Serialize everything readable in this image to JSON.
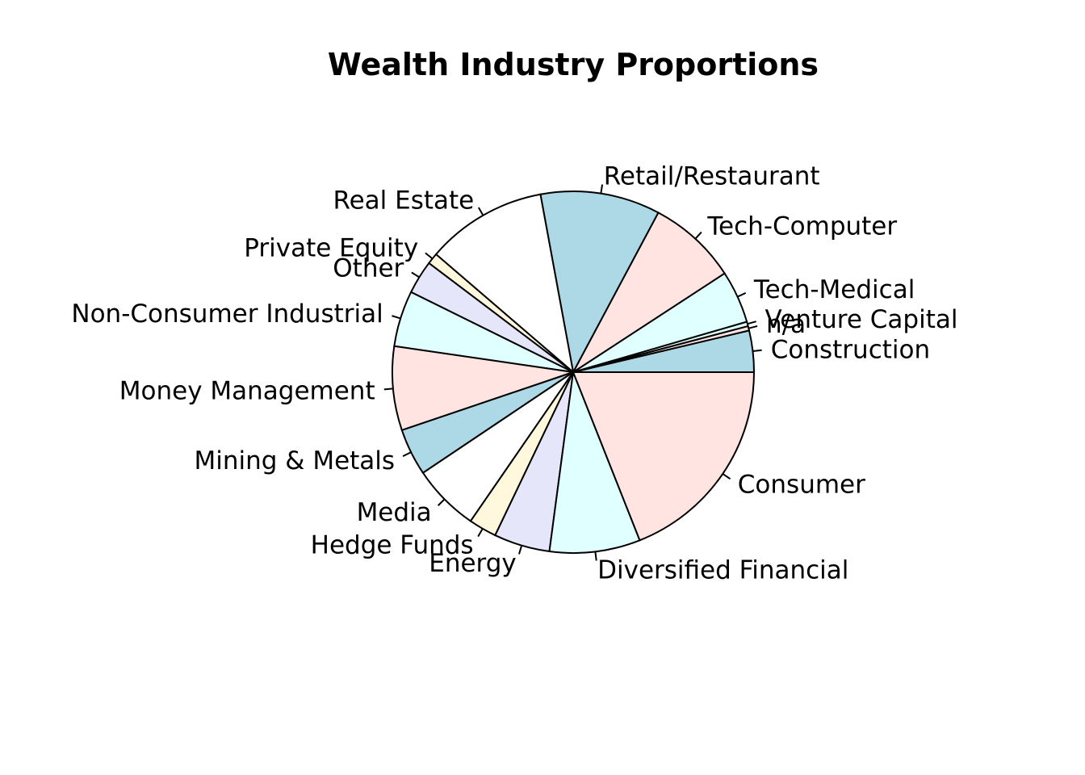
{
  "chart_data": {
    "type": "pie",
    "title": "Wealth Industry Proportions",
    "start_angle_deg": 0,
    "direction": "counterclockwise",
    "slices": [
      {
        "label": "Construction",
        "value": 3.7,
        "color": "#ADD8E6"
      },
      {
        "label": "n/a",
        "value": 0.4,
        "color": "#FFE4E1"
      },
      {
        "label": "Venture Capital",
        "value": 0.4,
        "color": "#E0FFFF"
      },
      {
        "label": "Tech-Medical",
        "value": 4.7,
        "color": "#E0FFFF"
      },
      {
        "label": "Tech-Computer",
        "value": 8.0,
        "color": "#FFE4E1"
      },
      {
        "label": "Retail/Restaurant",
        "value": 10.7,
        "color": "#ADD8E6"
      },
      {
        "label": "Real Estate",
        "value": 10.8,
        "color": "#FFFFFF"
      },
      {
        "label": "Private Equity",
        "value": 1.0,
        "color": "#FFF8DC"
      },
      {
        "label": "Other",
        "value": 3.0,
        "color": "#E6E6FA"
      },
      {
        "label": "Non-Consumer Industrial",
        "value": 5.0,
        "color": "#E0FFFF"
      },
      {
        "label": "Money Management",
        "value": 7.5,
        "color": "#FFE4E1"
      },
      {
        "label": "Mining & Metals",
        "value": 4.2,
        "color": "#ADD8E6"
      },
      {
        "label": "Media",
        "value": 6.0,
        "color": "#FFFFFF"
      },
      {
        "label": "Hedge Funds",
        "value": 2.5,
        "color": "#FFF8DC"
      },
      {
        "label": "Energy",
        "value": 5.0,
        "color": "#E6E6FA"
      },
      {
        "label": "Diversified Financial",
        "value": 8.1,
        "color": "#E0FFFF"
      },
      {
        "label": "Consumer",
        "value": 19.0,
        "color": "#FFE4E1"
      }
    ]
  }
}
